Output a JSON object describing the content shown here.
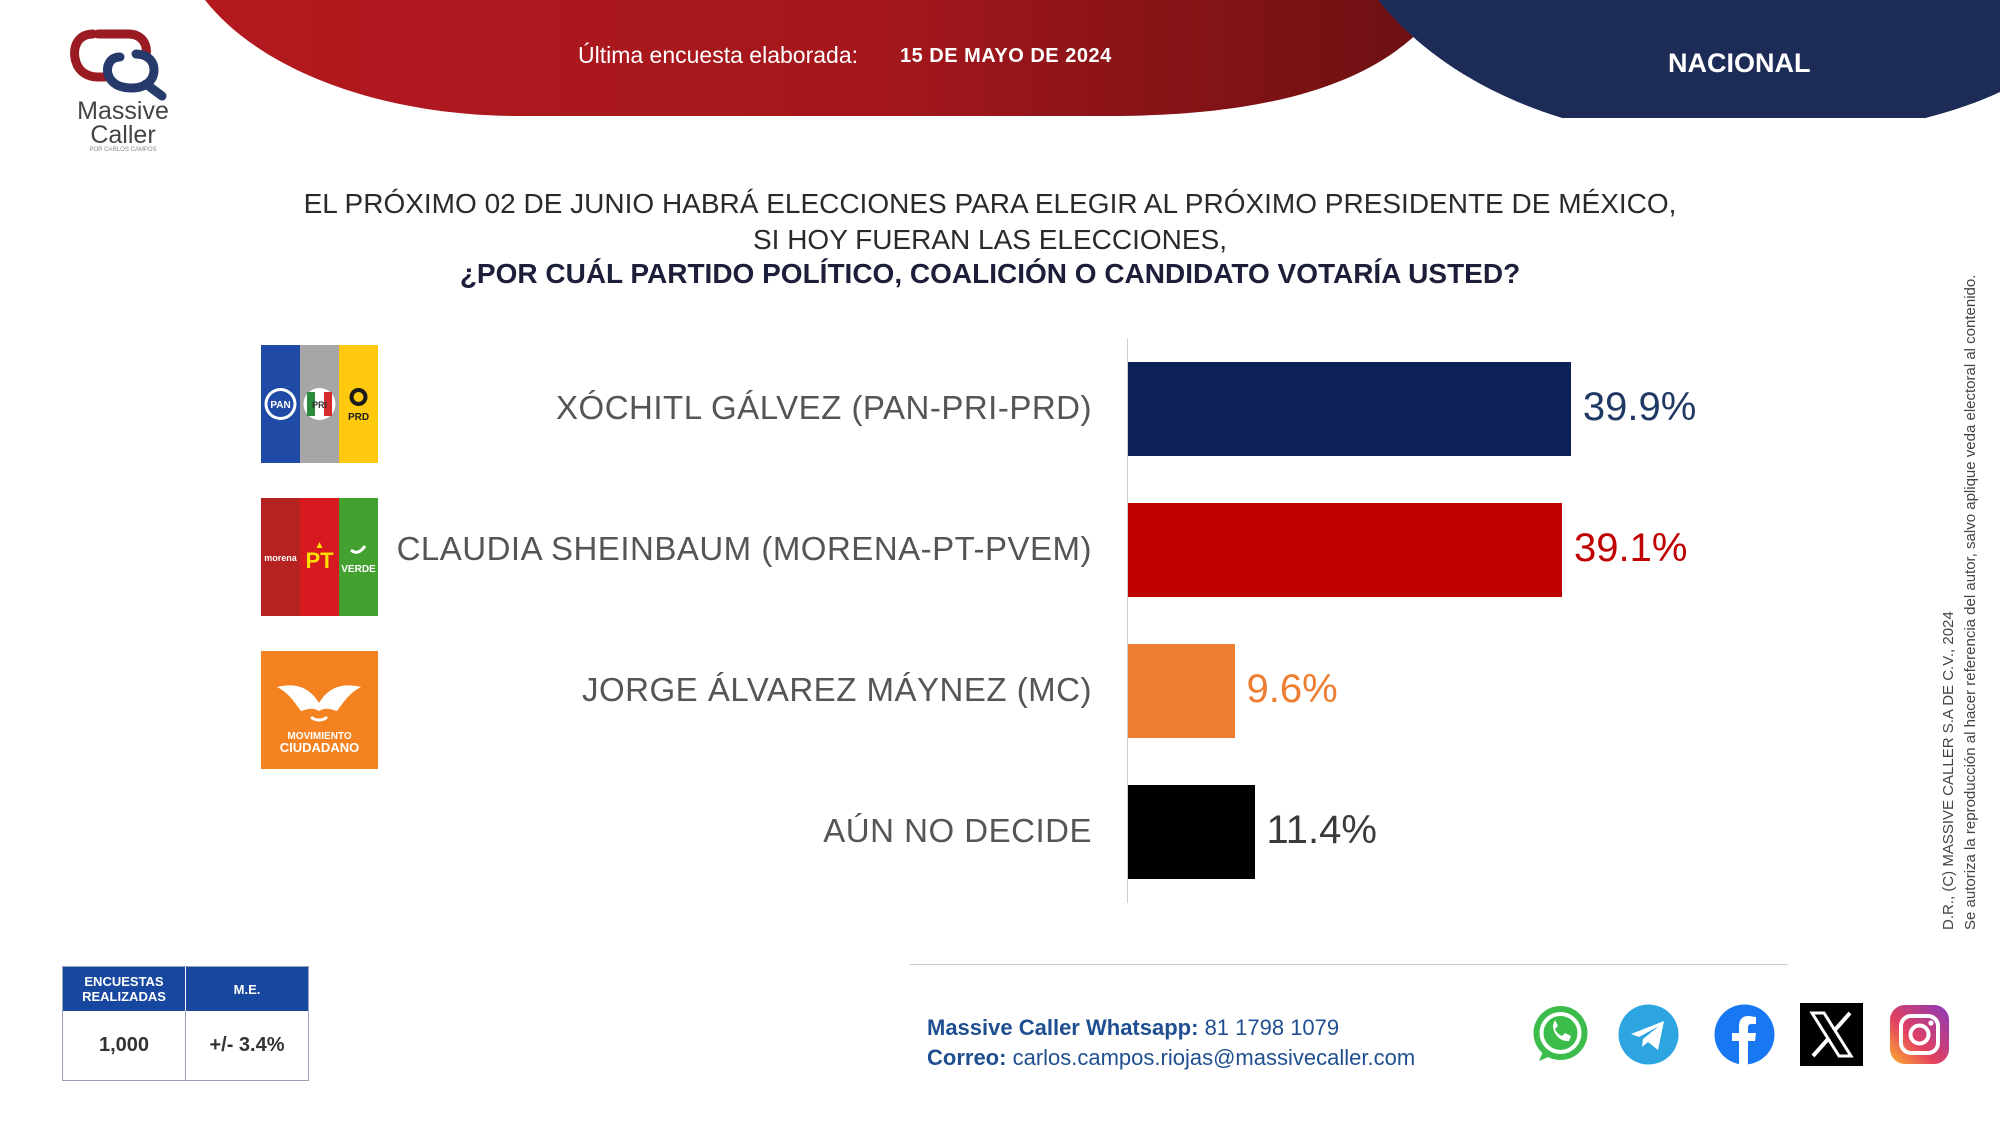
{
  "header": {
    "survey_label": "Última encuesta elaborada:",
    "survey_date": "15 DE MAYO DE 2024",
    "scope": "NACIONAL",
    "colors": {
      "red_dark": "#8c1216",
      "red": "#b3191f",
      "navy": "#1d2b57"
    }
  },
  "brand": {
    "line1": "Massive",
    "line2": "Caller",
    "tagline": "POR CARLOS CAMPOS"
  },
  "question": {
    "line1": "EL PRÓXIMO 02 DE JUNIO HABRÁ ELECCIONES PARA ELEGIR AL PRÓXIMO PRESIDENTE DE MÉXICO,",
    "line2": "SI HOY FUERAN LAS ELECCIONES,",
    "line3": "¿POR CUÁL PARTIDO POLÍTICO, COALICIÓN O CANDIDATO VOTARÍA USTED?"
  },
  "party_logos": {
    "pan": "PAN",
    "pri": "PRI",
    "prd": "PRD",
    "morena": "morena",
    "pt": "PT",
    "verde": "VERDE",
    "mc_line1": "MOVIMIENTO",
    "mc_line2": "CIUDADANO"
  },
  "chart_data": {
    "type": "bar",
    "orientation": "horizontal",
    "categories": [
      "XÓCHITL GÁLVEZ (PAN-PRI-PRD)",
      "CLAUDIA SHEINBAUM (MORENA-PT-PVEM)",
      "JORGE ÁLVAREZ MÁYNEZ (MC)",
      "AÚN NO DECIDE"
    ],
    "values": [
      39.9,
      39.1,
      9.6,
      11.4
    ],
    "value_labels": [
      "39.9%",
      "39.1%",
      "9.6%",
      "11.4%"
    ],
    "colors": [
      "#0b2157",
      "#c00000",
      "#ed7d31",
      "#000000"
    ],
    "label_colors": [
      "#1f3864",
      "#c00000",
      "#ed7d31",
      "#3a3a3a"
    ],
    "xlim": [
      0,
      50
    ],
    "grid": false,
    "legend": "none"
  },
  "methodology": {
    "col1_header": "ENCUESTAS REALIZADAS",
    "col2_header": "M.E.",
    "col1_value": "1,000",
    "col2_value": "+/- 3.4%"
  },
  "footer": {
    "whatsapp_label": "Massive Caller Whatsapp:",
    "whatsapp_number": "81 1798 1079",
    "email_label": "Correo:",
    "email": "carlos.campos.riojas@massivecaller.com",
    "social_icons": [
      "whatsapp-icon",
      "telegram-icon",
      "facebook-icon",
      "x-icon",
      "instagram-icon"
    ]
  },
  "legal": {
    "line1": "D.R., (C) MASSIVE CALLER S.A DE C.V., 2024",
    "line2": "Se autoriza la reproducción al hacer referencia del autor, salvo aplique veda electoral al contenido."
  }
}
